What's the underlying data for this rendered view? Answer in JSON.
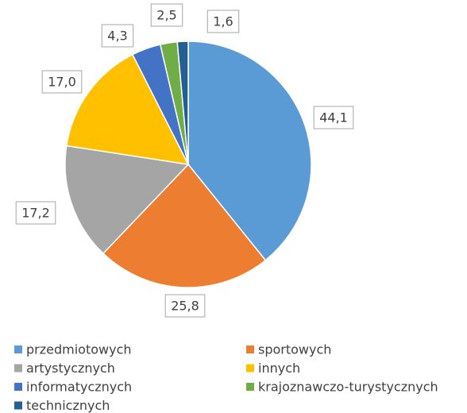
{
  "chart_data": {
    "type": "pie",
    "categories": [
      "przedmiotowych",
      "sportowych",
      "artystycznych",
      "innych",
      "informatycznych",
      "krajoznawczo-turystycznych",
      "technicznych"
    ],
    "values": [
      44.1,
      25.8,
      17.2,
      17.0,
      4.3,
      2.5,
      1.6
    ],
    "value_labels": [
      "44,1",
      "25,8",
      "17,2",
      "17,0",
      "4,3",
      "2,5",
      "1,6"
    ],
    "colors": [
      "#5b9bd5",
      "#ed7d31",
      "#a5a5a5",
      "#ffc000",
      "#4472c4",
      "#70ad47",
      "#255e91"
    ],
    "legend": "bottom"
  }
}
